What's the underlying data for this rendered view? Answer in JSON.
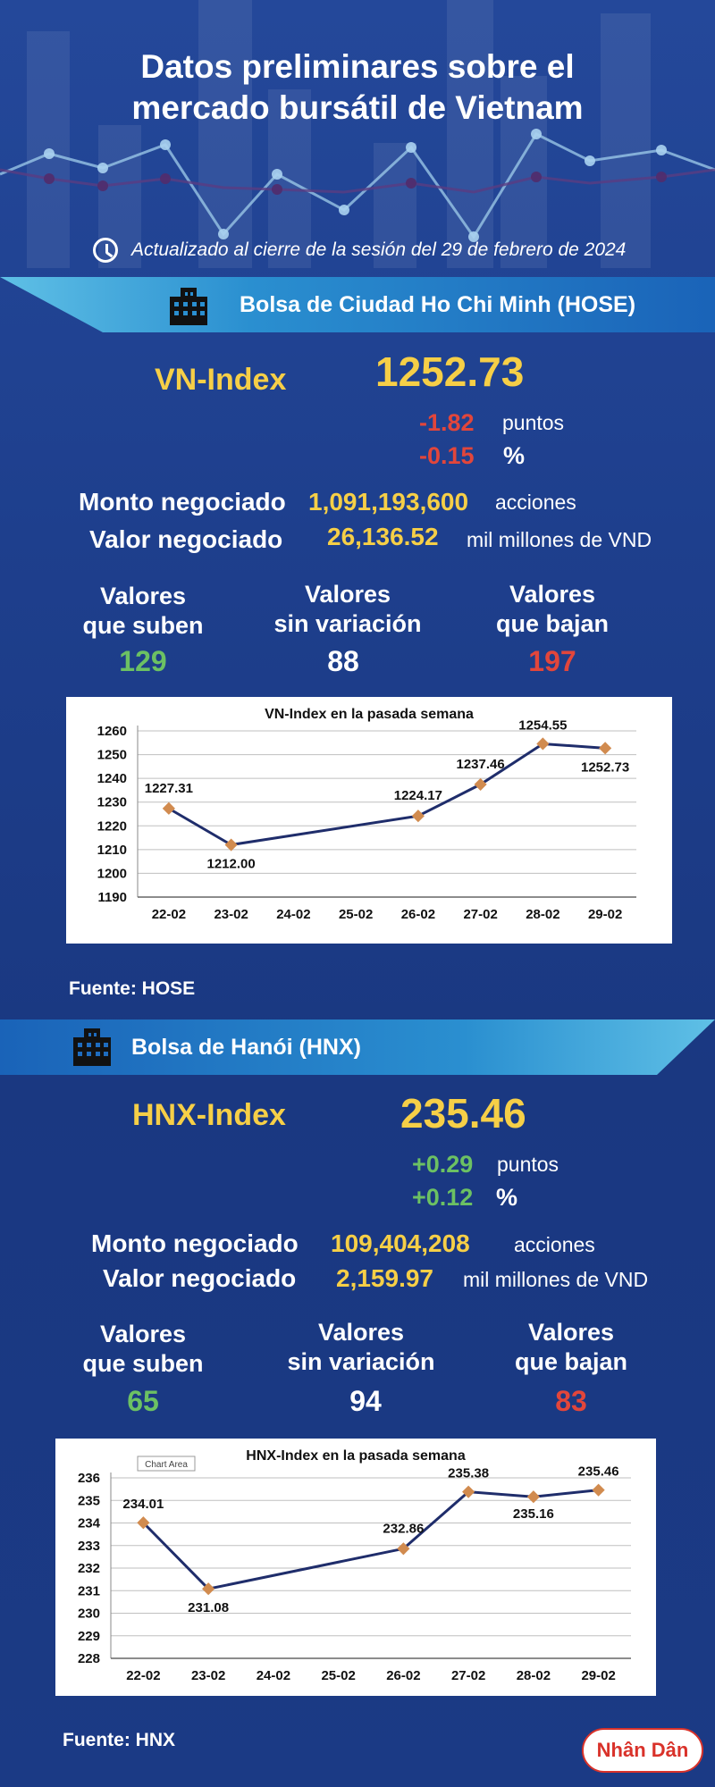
{
  "header": {
    "title_line1": "Datos preliminares sobre el",
    "title_line2": "mercado bursátil de Vietnam",
    "updated": "Actualizado al cierre de la sesión del 29 de febrero de 2024"
  },
  "hose": {
    "exchange": "Bolsa de Ciudad Ho Chi Minh (HOSE)",
    "index_name": "VN-Index",
    "index_value": "1252.73",
    "change_points": "-1.82",
    "points_label": "puntos",
    "change_pct": "-0.15",
    "pct_label": "%",
    "volume_label": "Monto negociado",
    "volume": "1,091,193,600",
    "volume_unit": "acciones",
    "value_label": "Valor negociado",
    "value": "26,136.52",
    "value_unit": "mil millones de VND",
    "up_label_1": "Valores",
    "up_label_2": "que suben",
    "up": "129",
    "flat_label_1": "Valores",
    "flat_label_2": "sin variación",
    "flat": "88",
    "down_label_1": "Valores",
    "down_label_2": "que bajan",
    "down": "197",
    "source": "Fuente: HOSE"
  },
  "hnx": {
    "exchange": "Bolsa de Hanói (HNX)",
    "index_name": "HNX-Index",
    "index_value": "235.46",
    "change_points": "+0.29",
    "points_label": "puntos",
    "change_pct": "+0.12",
    "pct_label": "%",
    "volume_label": "Monto negociado",
    "volume": "109,404,208",
    "volume_unit": "acciones",
    "value_label": "Valor negociado",
    "value": "2,159.97",
    "value_unit": "mil millones de VND",
    "up_label_1": "Valores",
    "up_label_2": "que suben",
    "up": "65",
    "flat_label_1": "Valores",
    "flat_label_2": "sin variación",
    "flat": "94",
    "down_label_1": "Valores",
    "down_label_2": "que bajan",
    "down": "83",
    "source": "Fuente:  HNX",
    "chart_area_tag": "Chart Area"
  },
  "logo": "Nhân Dân",
  "colors": {
    "accent": "#f6cf47",
    "up": "#6cc163",
    "down": "#e2463b",
    "line": "#1f2d6b",
    "marker": "#d18b4f"
  },
  "icons": {
    "clock": "clock-icon",
    "building": "building-icon"
  },
  "chart_data": [
    {
      "type": "line",
      "title": "VN-Index en la pasada semana",
      "categories": [
        "22-02",
        "23-02",
        "24-02",
        "25-02",
        "26-02",
        "27-02",
        "28-02",
        "29-02"
      ],
      "points": [
        {
          "x": "22-02",
          "y": 1227.31,
          "label": "1227.31"
        },
        {
          "x": "23-02",
          "y": 1212.0,
          "label": "1212.00"
        },
        {
          "x": "26-02",
          "y": 1224.17,
          "label": "1224.17"
        },
        {
          "x": "27-02",
          "y": 1237.46,
          "label": "1237.46"
        },
        {
          "x": "28-02",
          "y": 1254.55,
          "label": "1254.55"
        },
        {
          "x": "29-02",
          "y": 1252.73,
          "label": "1252.73"
        }
      ],
      "yticks": [
        "1260",
        "1250",
        "1240",
        "1230",
        "1220",
        "1210",
        "1200",
        "1190"
      ],
      "ylim": [
        1190,
        1260
      ],
      "grid": true
    },
    {
      "type": "line",
      "title": "HNX-Index en la pasada semana",
      "categories": [
        "22-02",
        "23-02",
        "24-02",
        "25-02",
        "26-02",
        "27-02",
        "28-02",
        "29-02"
      ],
      "points": [
        {
          "x": "22-02",
          "y": 234.01,
          "label": "234.01"
        },
        {
          "x": "23-02",
          "y": 231.08,
          "label": "231.08"
        },
        {
          "x": "26-02",
          "y": 232.86,
          "label": "232.86"
        },
        {
          "x": "27-02",
          "y": 235.38,
          "label": "235.38"
        },
        {
          "x": "28-02",
          "y": 235.16,
          "label": "235.16"
        },
        {
          "x": "29-02",
          "y": 235.46,
          "label": "235.46"
        }
      ],
      "yticks": [
        "236",
        "235",
        "234",
        "233",
        "232",
        "231",
        "230",
        "229",
        "228"
      ],
      "ylim": [
        228,
        236
      ],
      "grid": true
    }
  ]
}
